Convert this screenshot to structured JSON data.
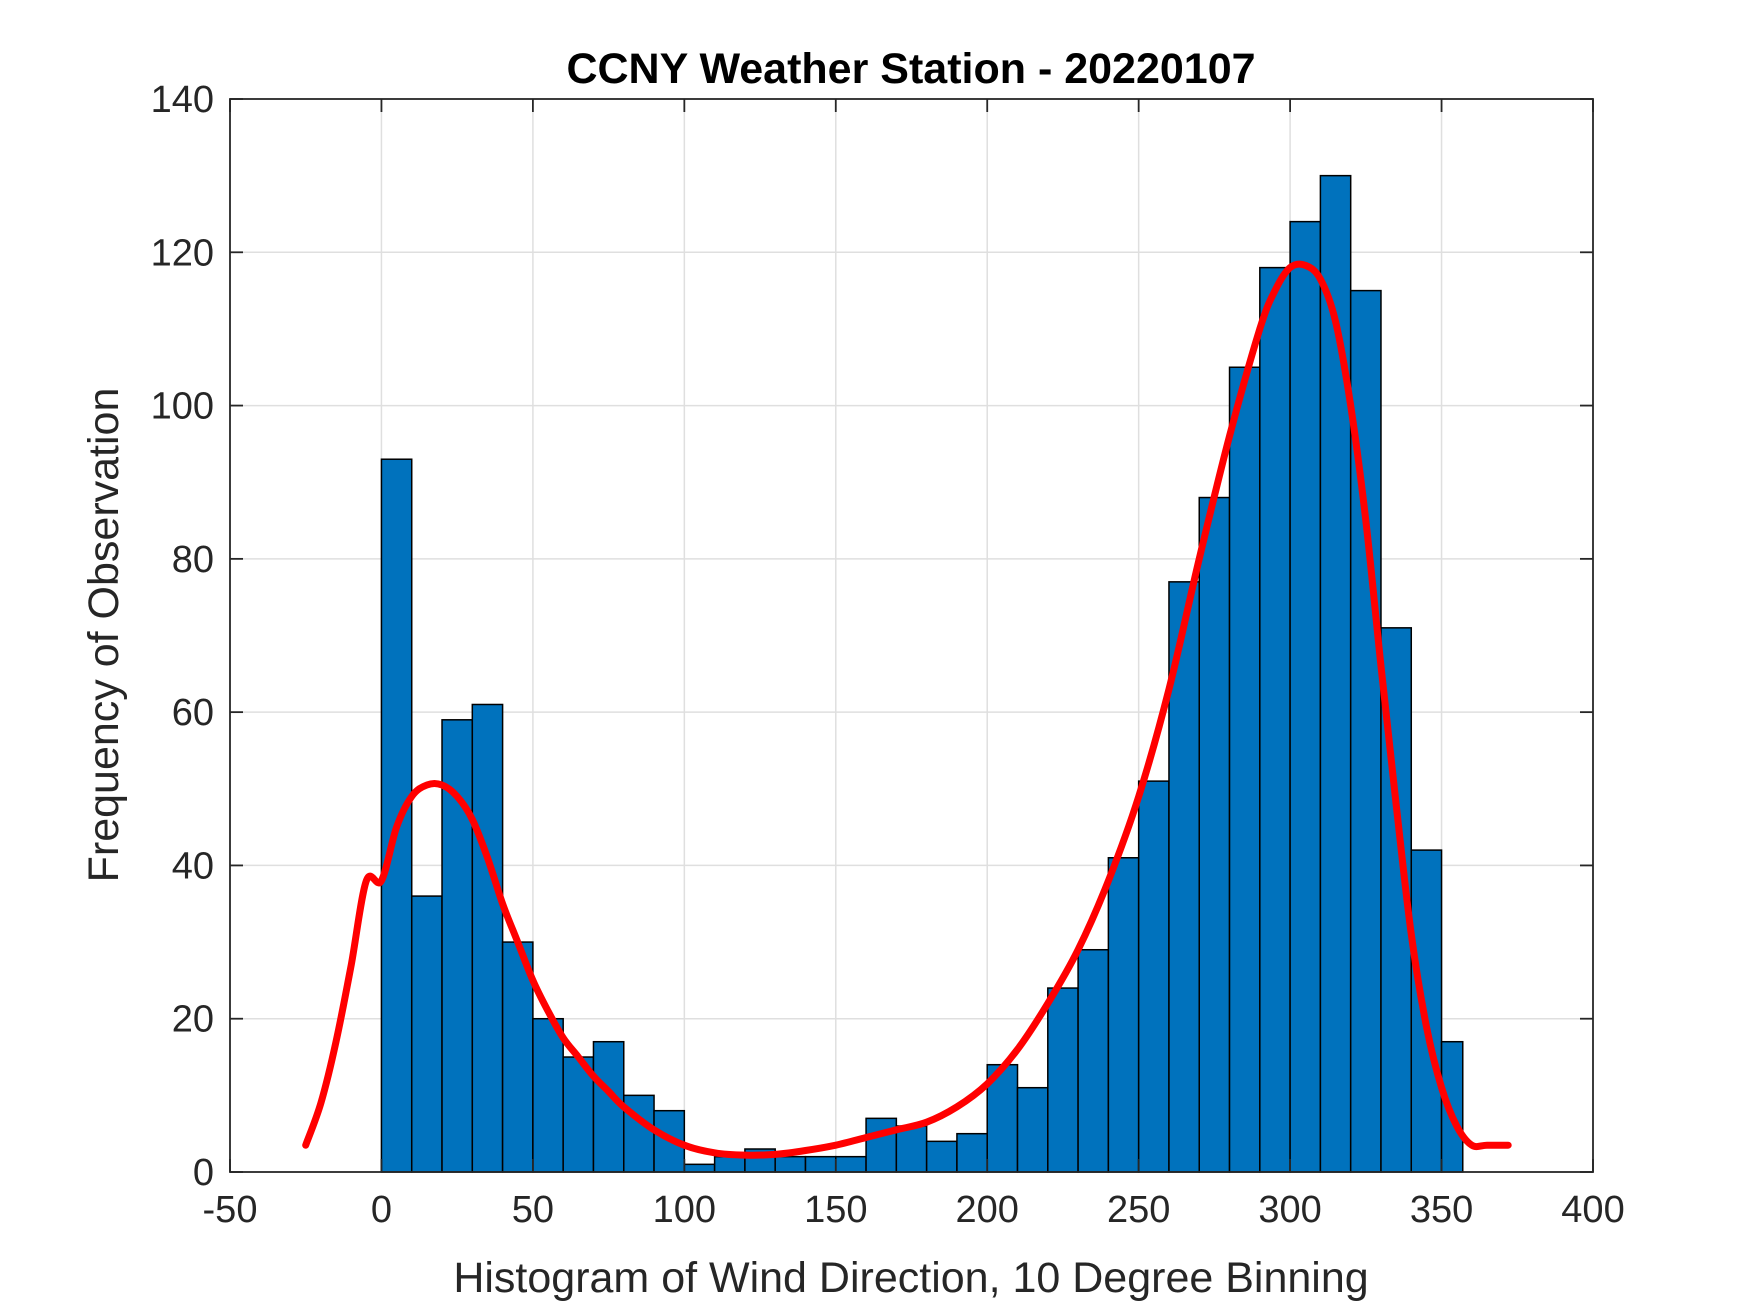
{
  "chart_data": {
    "type": "bar",
    "title": "CCNY Weather Station - 20220107",
    "xlabel": "Histogram of Wind Direction, 10 Degree Binning",
    "ylabel": "Frequency of Observation",
    "xlim": [
      -50,
      400
    ],
    "ylim": [
      0,
      140
    ],
    "grid": true,
    "x_ticks": [
      -50,
      0,
      50,
      100,
      150,
      200,
      250,
      300,
      350,
      400
    ],
    "y_ticks": [
      0,
      20,
      40,
      60,
      80,
      100,
      120,
      140
    ],
    "x_tick_labels": [
      "-50",
      "0",
      "50",
      "100",
      "150",
      "200",
      "250",
      "300",
      "350",
      "400"
    ],
    "y_tick_labels": [
      "0",
      "20",
      "40",
      "60",
      "80",
      "100",
      "120",
      "140"
    ],
    "bin_width": 10,
    "bin_edges_start": [
      0,
      10,
      20,
      30,
      40,
      50,
      60,
      70,
      80,
      90,
      100,
      110,
      120,
      130,
      140,
      150,
      160,
      170,
      180,
      190,
      200,
      210,
      220,
      230,
      240,
      250,
      260,
      270,
      280,
      290,
      300,
      310,
      320,
      330,
      340,
      350
    ],
    "values": [
      93,
      36,
      59,
      61,
      30,
      20,
      15,
      17,
      10,
      8,
      1,
      2,
      3,
      2,
      2,
      2,
      7,
      6,
      4,
      5,
      14,
      11,
      24,
      29,
      41,
      51,
      77,
      88,
      105,
      118,
      124,
      130,
      115,
      71,
      42,
      17
    ],
    "last_bin_end": 357,
    "bar_color": "#0072BD",
    "bar_edge_color": "#000000",
    "fit_line": {
      "color": "#FF0000",
      "x": [
        -25,
        -20,
        -15,
        -10,
        -5,
        0,
        5,
        10,
        15,
        20,
        25,
        30,
        35,
        40,
        45,
        50,
        55,
        60,
        65,
        70,
        75,
        80,
        90,
        100,
        110,
        120,
        130,
        140,
        150,
        160,
        170,
        180,
        190,
        200,
        210,
        220,
        230,
        240,
        250,
        260,
        270,
        280,
        290,
        295,
        300,
        305,
        310,
        315,
        320,
        325,
        330,
        335,
        340,
        345,
        350,
        355,
        360,
        365,
        372
      ],
      "y": [
        3.5,
        9,
        17,
        27,
        38,
        38,
        45,
        49,
        50.5,
        50.5,
        49,
        46,
        41,
        35,
        30,
        25,
        21,
        17.5,
        15,
        12.5,
        10.5,
        8.5,
        5.5,
        3.5,
        2.5,
        2.2,
        2.3,
        2.8,
        3.5,
        4.5,
        5.5,
        6.5,
        8.5,
        11.5,
        16,
        22,
        29,
        38,
        49,
        63,
        80,
        96,
        110,
        115,
        118,
        118.3,
        116.5,
        111,
        100,
        85,
        66,
        48,
        31,
        19,
        11,
        6,
        3.5,
        3.5,
        3.5
      ]
    }
  }
}
